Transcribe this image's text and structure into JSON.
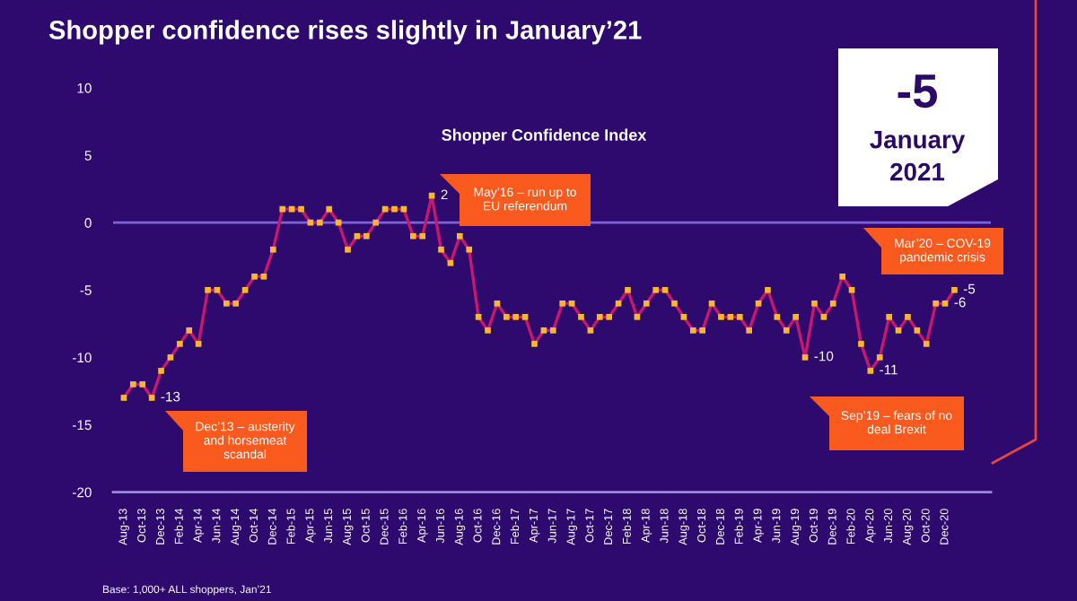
{
  "chart_data": {
    "type": "line",
    "title": "Shopper confidence rises slightly in January’21",
    "subtitle": "Shopper Confidence Index",
    "categories": [
      "Aug-13",
      null,
      "Oct-13",
      null,
      "Dec-13",
      null,
      "Feb-14",
      null,
      "Apr-14",
      null,
      "Jun-14",
      null,
      "Aug-14",
      null,
      "Oct-14",
      null,
      "Dec-14",
      null,
      "Feb-15",
      null,
      "Apr-15",
      null,
      "Jun-15",
      null,
      "Aug-15",
      null,
      "Oct-15",
      null,
      "Dec-15",
      null,
      "Feb-16",
      null,
      "Apr-16",
      null,
      "Jun-16",
      null,
      "Aug-16",
      null,
      "Oct-16",
      null,
      "Dec-16",
      null,
      "Feb-17",
      null,
      "Apr-17",
      null,
      "Jun-17",
      null,
      "Aug-17",
      null,
      "Oct-17",
      null,
      "Dec-17",
      null,
      "Feb-18",
      null,
      "Apr-18",
      null,
      "Jun-18",
      null,
      "Aug-18",
      null,
      "Oct-18",
      null,
      "Dec-18",
      null,
      "Feb-19",
      null,
      "Apr-19",
      null,
      "Jun-19",
      null,
      "Aug-19",
      null,
      "Oct-19",
      null,
      "Dec-19",
      null,
      "Feb-20",
      null,
      "Apr-20",
      null,
      "Jun-20",
      null,
      "Aug-20",
      null,
      "Oct-20",
      null,
      "Dec-20",
      null
    ],
    "series": [
      {
        "color": "#c8186e",
        "values": [
          -13,
          -12,
          -12,
          -13,
          -11,
          -10,
          -9,
          -8,
          -9,
          -5,
          -5,
          -6,
          -6,
          -5,
          -4,
          -4,
          -2,
          1,
          1,
          1,
          0,
          0,
          1,
          0,
          -2,
          -1,
          -1,
          0,
          1,
          1,
          1,
          -1,
          -1,
          2,
          -2,
          -3,
          -1,
          -2,
          -7,
          -8,
          -6,
          -7,
          -7,
          -7,
          -9,
          -8,
          -8,
          -6,
          -6,
          -7,
          -8,
          -7,
          -7,
          -6,
          -5,
          -7,
          -6,
          -5,
          -5,
          -6,
          -7,
          -8,
          -8,
          -6,
          -7,
          -7,
          -7,
          -8,
          -6,
          -5,
          -7,
          -8,
          -7,
          -10,
          -6,
          -7,
          -6,
          -4,
          -5,
          -9,
          -11,
          -10,
          -7,
          -8,
          -7,
          -8,
          -9,
          -6,
          -6,
          -5
        ],
        "value_labels": [
          null,
          null,
          null,
          "-13",
          null,
          null,
          null,
          null,
          null,
          null,
          null,
          null,
          null,
          null,
          null,
          null,
          null,
          null,
          null,
          null,
          null,
          null,
          null,
          null,
          null,
          null,
          null,
          null,
          null,
          null,
          null,
          null,
          null,
          "2",
          null,
          null,
          null,
          null,
          null,
          null,
          null,
          null,
          null,
          null,
          null,
          null,
          null,
          null,
          null,
          null,
          null,
          null,
          null,
          null,
          null,
          null,
          null,
          null,
          null,
          null,
          null,
          null,
          null,
          null,
          null,
          null,
          null,
          null,
          null,
          null,
          null,
          null,
          null,
          "-10",
          null,
          null,
          null,
          null,
          null,
          null,
          "-11",
          null,
          null,
          null,
          null,
          null,
          null,
          null,
          "-6",
          "-5"
        ]
      }
    ],
    "ylim": [
      -20,
      10
    ],
    "yticks": [
      -20,
      -15,
      -10,
      -5,
      0,
      5,
      10
    ],
    "grid": false,
    "marker": "square",
    "line_style": "solid",
    "ref_lines": [
      {
        "axis": "y",
        "value": 0,
        "color": "#7d62d8"
      }
    ],
    "annotations": [
      "-5",
      "January",
      "2021",
      "Dec’13 – austerity\nand horsemeat\nscandal",
      "May’16 – run up to\nEU referendum",
      "Sep’19 – fears of no\ndeal Brexit",
      "Mar’20 – COV-19\npandemic crisis",
      "Base: 1,000+ ALL shoppers, Jan’21"
    ]
  }
}
